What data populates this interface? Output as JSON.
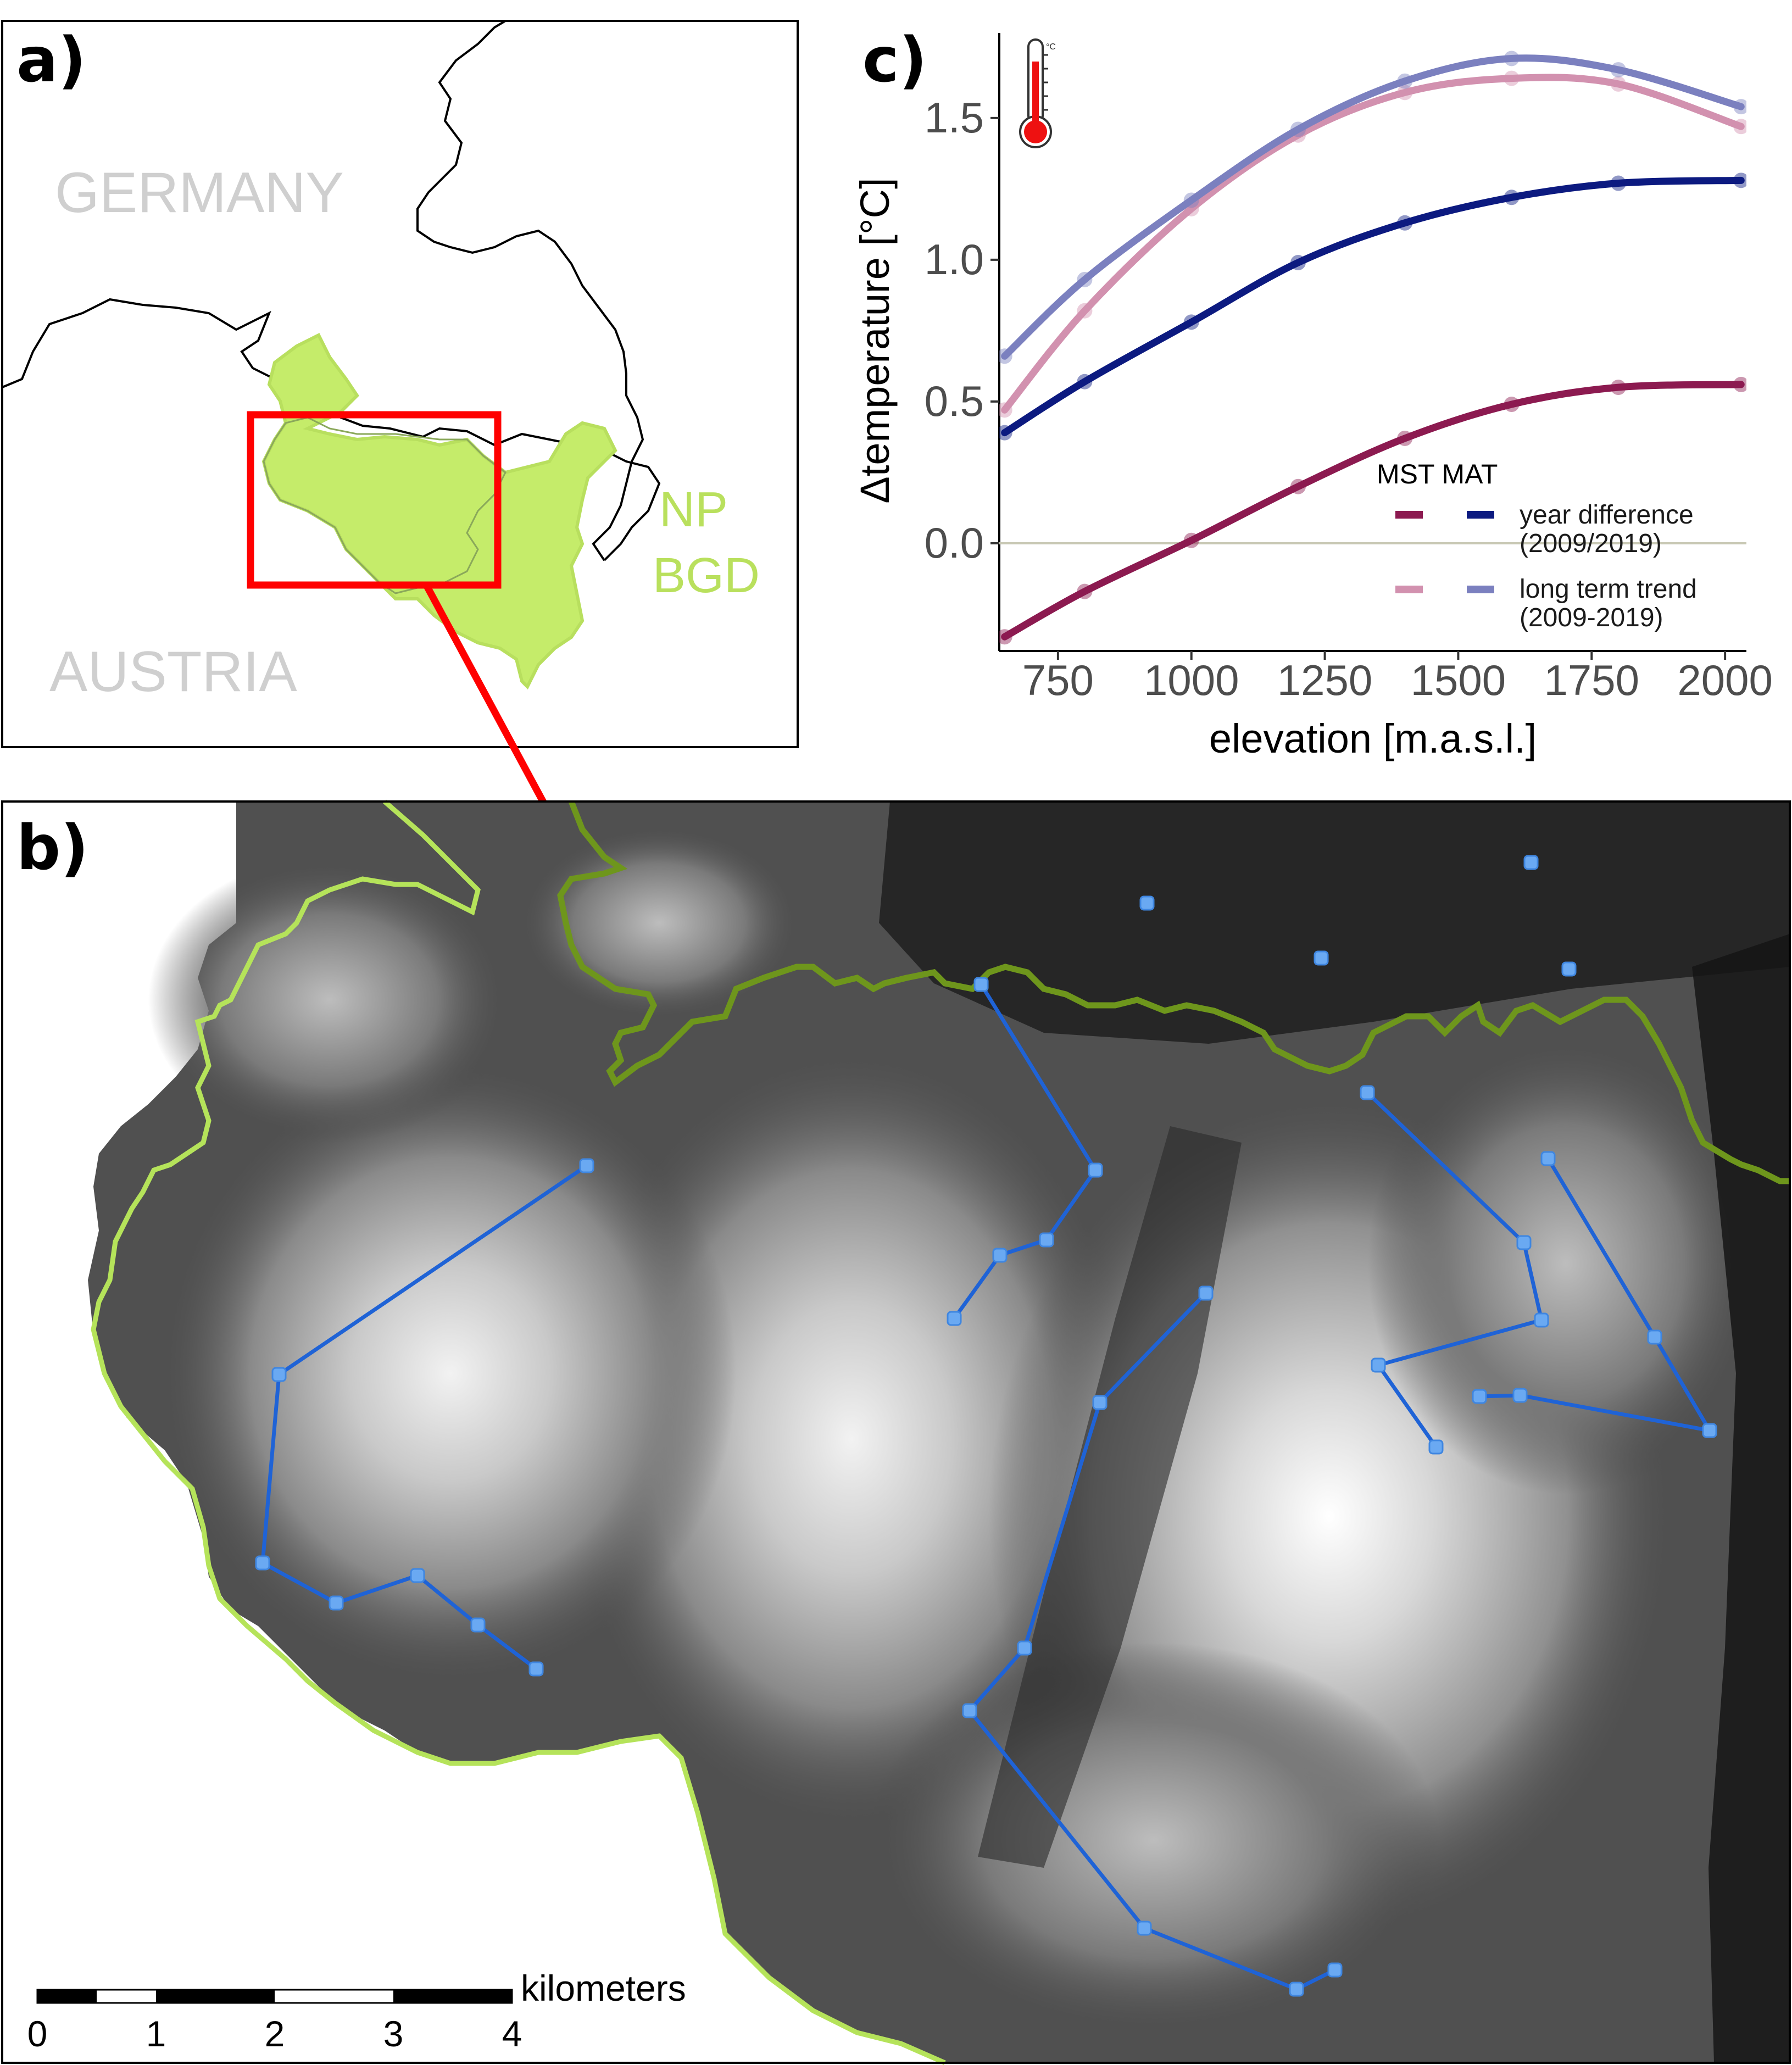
{
  "panels": {
    "a": {
      "label": "a)",
      "country_north": "GERMANY",
      "country_south": "AUSTRIA",
      "park_line1": "NP",
      "park_line2": "BGD"
    },
    "b": {
      "label": "b)"
    },
    "c": {
      "label": "c)",
      "thermometer_unit": "°C"
    }
  },
  "colors": {
    "park_fill": "#c5ec6a",
    "inset_box": "#ff0000",
    "park_border_dark": "#6e961c",
    "park_border_light": "#b5e35a",
    "transect_line": "#1f63d6",
    "logger_point": "#6aa9f2",
    "mst_year": "#8c1a50",
    "mat_year": "#0c1a80",
    "mst_trend": "#d291af",
    "mat_trend": "#7b80bf"
  },
  "chart_data": {
    "type": "line",
    "title": "",
    "xlabel": "elevation [m.a.s.l.]",
    "ylabel": "Δtemperature [°C]",
    "xlim": [
      640,
      2040
    ],
    "ylim": [
      -0.38,
      1.8
    ],
    "x_ticks": [
      "750",
      "1000",
      "1250",
      "1500",
      "1750",
      "2000"
    ],
    "y_ticks": [
      "0.0",
      "0.5",
      "1.0",
      "1.5"
    ],
    "zero_line": true,
    "grid": false,
    "x": [
      650,
      800,
      1000,
      1200,
      1400,
      1600,
      1800,
      2030
    ],
    "legend": {
      "title": "MST MAT",
      "entries": [
        {
          "label1": "year difference",
          "label2": "(2009/2019)"
        },
        {
          "label1": "long term trend",
          "label2": "(2009-2019)"
        }
      ],
      "position": "bottom-right"
    },
    "series": [
      {
        "key": "mst_year",
        "values": [
          -0.33,
          -0.17,
          0.01,
          0.2,
          0.37,
          0.49,
          0.55,
          0.56
        ]
      },
      {
        "key": "mat_year",
        "values": [
          0.39,
          0.57,
          0.78,
          0.99,
          1.13,
          1.22,
          1.27,
          1.28
        ]
      },
      {
        "key": "mst_trend",
        "values": [
          0.47,
          0.82,
          1.18,
          1.44,
          1.59,
          1.64,
          1.62,
          1.47
        ]
      },
      {
        "key": "mat_trend",
        "values": [
          0.66,
          0.93,
          1.21,
          1.46,
          1.63,
          1.71,
          1.67,
          1.54
        ]
      }
    ]
  },
  "scale_bar": {
    "unit": "kilometers",
    "ticks": [
      "0",
      "1",
      "2",
      "3",
      "4"
    ]
  }
}
